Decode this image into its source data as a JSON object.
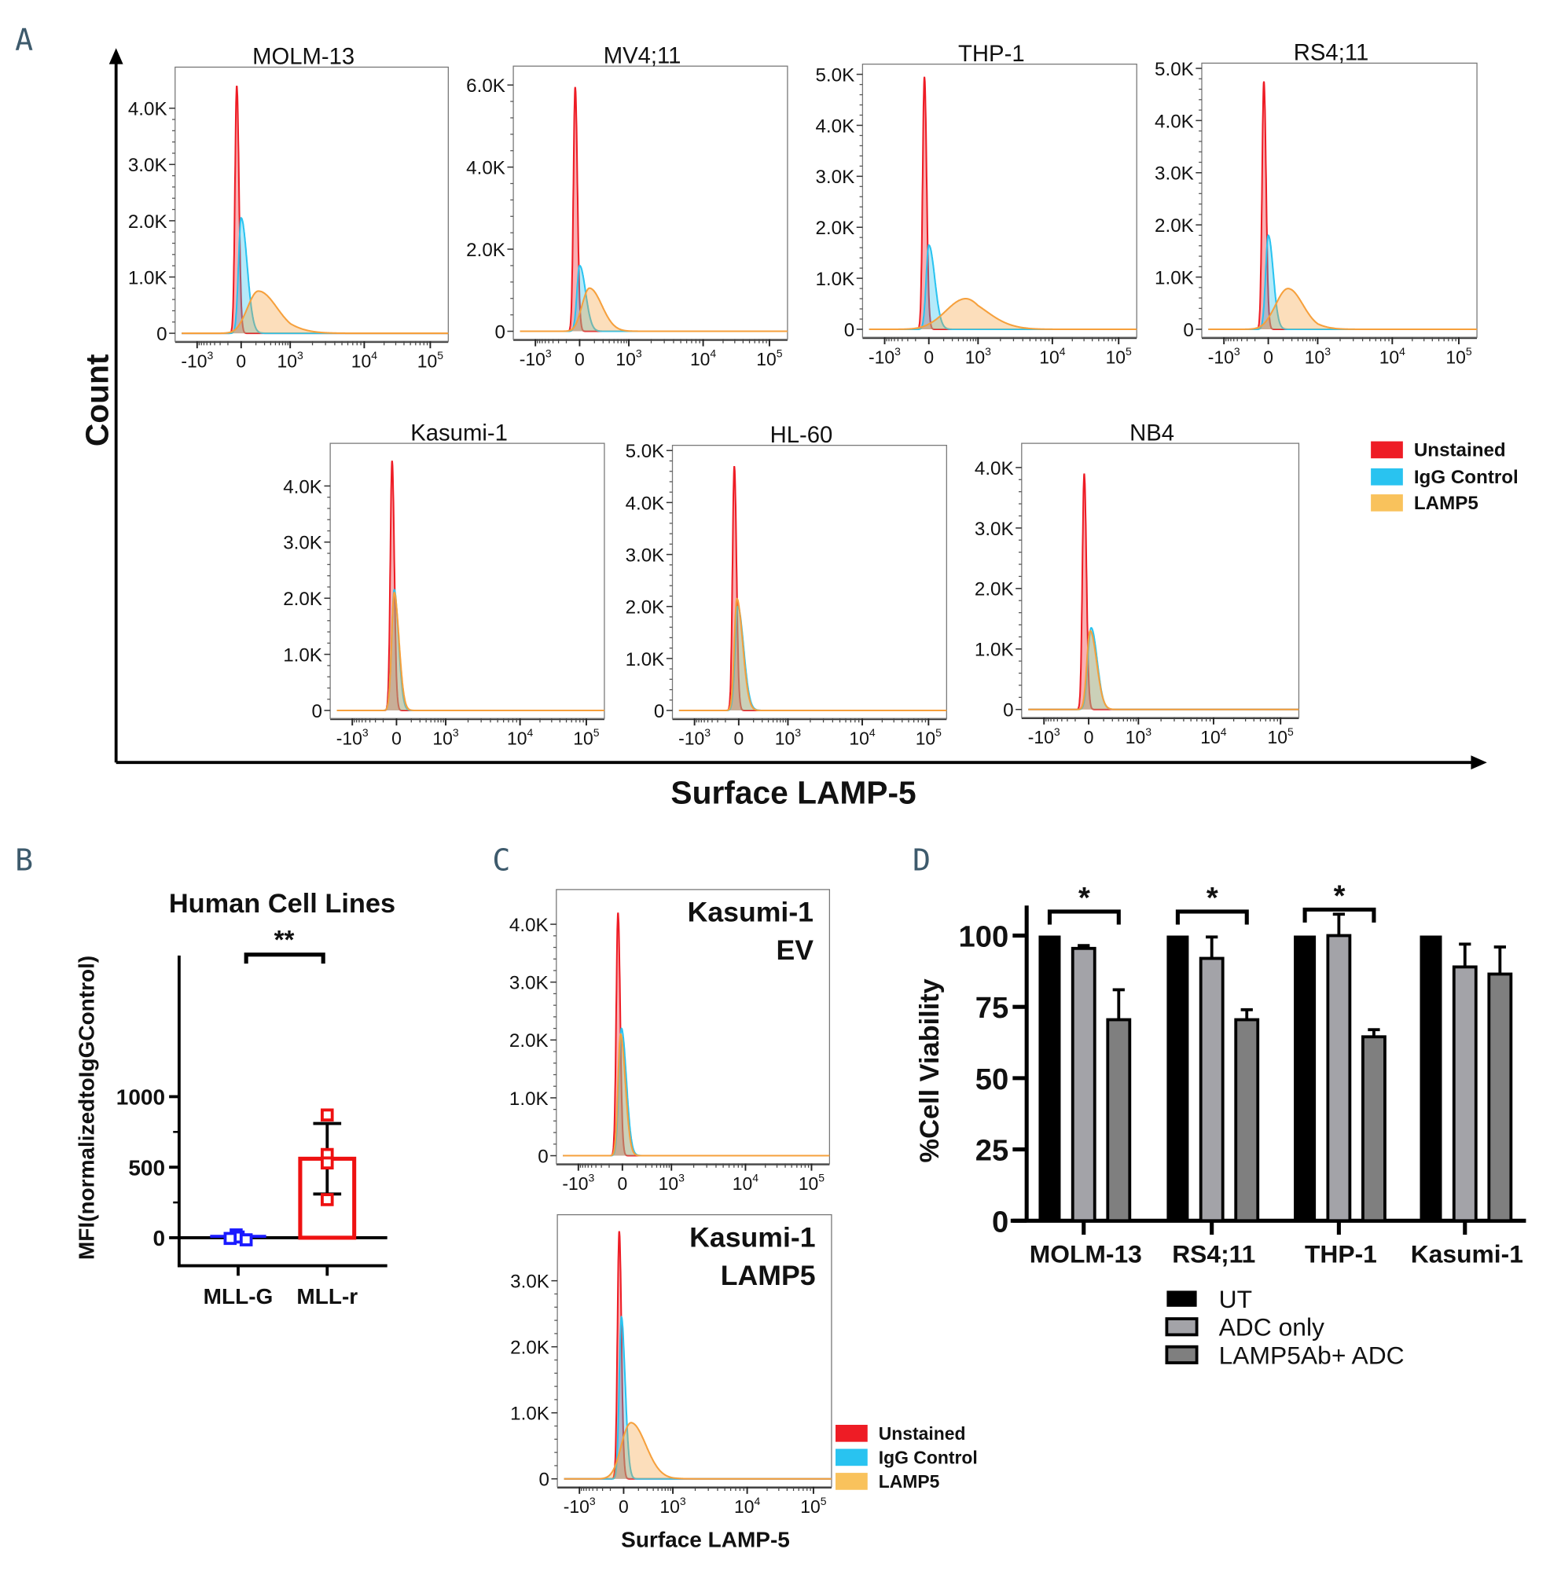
{
  "panel_letters": [
    "A",
    "B",
    "C",
    "D"
  ],
  "colors": {
    "unstained": "#ee1c25",
    "igg": "#29c3f0",
    "lamp5": "#f6a03c",
    "letter": "#3d5a6c",
    "mll_g": "#1a1aff",
    "mll_r": "#ee1111",
    "ut": "#000000",
    "adc": "#a3a3a8",
    "lamp5adc": "#7f7f7f"
  },
  "panel_a": {
    "ylabel": "Count",
    "xlabel": "Surface LAMP-5"
  },
  "legend_flow": [
    "Unstained",
    "IgG Control",
    "LAMP5"
  ],
  "x_ticks": [
    "-10",
    "0",
    "10",
    "10",
    "10"
  ],
  "x_tick_exp": [
    "3",
    "",
    "3",
    "4",
    "5"
  ],
  "chart_data": [
    {
      "type": "area",
      "title": "MOLM-13",
      "ymax": 4.73,
      "yticks": [
        "0",
        "1.0K",
        "2.0K",
        "3.0K",
        "4.0K"
      ],
      "series": [
        {
          "name": "Unstained",
          "center": -0.1,
          "height": 4.4,
          "sl": 0.04,
          "sr": 0.05
        },
        {
          "name": "IgG Control",
          "center": 0,
          "height": 2.05,
          "sl": 0.06,
          "sr": 0.12
        },
        {
          "name": "LAMP5",
          "center": 0.35,
          "height": 0.75,
          "sl": 0.22,
          "sr": 0.38
        }
      ]
    },
    {
      "type": "area",
      "title": "MV4;11",
      "ymax": 6.46,
      "yticks": [
        "0",
        "2.0K",
        "4.0K",
        "6.0K"
      ],
      "ystep": 2,
      "series": [
        {
          "name": "Unstained",
          "center": -0.1,
          "height": 5.95,
          "sl": 0.04,
          "sr": 0.05
        },
        {
          "name": "IgG Control",
          "center": 0,
          "height": 1.6,
          "sl": 0.06,
          "sr": 0.12
        },
        {
          "name": "LAMP5",
          "center": 0.2,
          "height": 1.05,
          "sl": 0.15,
          "sr": 0.25
        }
      ]
    },
    {
      "type": "area",
      "title": "THP-1",
      "ymax": 5.2,
      "yticks": [
        "0",
        "1.0K",
        "2.0K",
        "3.0K",
        "4.0K",
        "5.0K"
      ],
      "series": [
        {
          "name": "Unstained",
          "center": -0.1,
          "height": 4.95,
          "sl": 0.04,
          "sr": 0.05
        },
        {
          "name": "IgG Control",
          "center": 0,
          "height": 1.65,
          "sl": 0.06,
          "sr": 0.12
        },
        {
          "name": "LAMP5",
          "center": 0.75,
          "height": 0.6,
          "sl": 0.4,
          "sr": 0.35
        }
      ]
    },
    {
      "type": "area",
      "title": "RS4;11",
      "ymax": 5.1,
      "yticks": [
        "0",
        "1.0K",
        "2.0K",
        "3.0K",
        "4.0K",
        "5.0K"
      ],
      "series": [
        {
          "name": "Unstained",
          "center": -0.1,
          "height": 4.75,
          "sl": 0.04,
          "sr": 0.05
        },
        {
          "name": "IgG Control",
          "center": 0,
          "height": 1.8,
          "sl": 0.06,
          "sr": 0.1
        },
        {
          "name": "LAMP5",
          "center": 0.4,
          "height": 0.78,
          "sl": 0.25,
          "sr": 0.3
        }
      ]
    },
    {
      "type": "area",
      "title": "Kasumi-1",
      "ymax": 4.76,
      "yticks": [
        "0",
        "1.0K",
        "2.0K",
        "3.0K",
        "4.0K"
      ],
      "series": [
        {
          "name": "Unstained",
          "center": -0.1,
          "height": 4.45,
          "sl": 0.04,
          "sr": 0.05
        },
        {
          "name": "IgG Control",
          "center": -0.05,
          "height": 2.15,
          "sl": 0.06,
          "sr": 0.09
        },
        {
          "name": "LAMP5",
          "center": -0.05,
          "height": 2.1,
          "sl": 0.06,
          "sr": 0.1
        }
      ]
    },
    {
      "type": "area",
      "title": "HL-60",
      "ymax": 5.1,
      "yticks": [
        "0",
        "1.0K",
        "2.0K",
        "3.0K",
        "4.0K",
        "5.0K"
      ],
      "series": [
        {
          "name": "Unstained",
          "center": -0.1,
          "height": 4.7,
          "sl": 0.04,
          "sr": 0.05
        },
        {
          "name": "IgG Control",
          "center": -0.02,
          "height": 2.0,
          "sl": 0.06,
          "sr": 0.12
        },
        {
          "name": "LAMP5",
          "center": -0.04,
          "height": 2.15,
          "sl": 0.06,
          "sr": 0.12
        }
      ]
    },
    {
      "type": "area",
      "title": "NB4",
      "ymax": 4.4,
      "yticks": [
        "0",
        "1.0K",
        "2.0K",
        "3.0K",
        "4.0K"
      ],
      "series": [
        {
          "name": "Unstained",
          "center": -0.1,
          "height": 3.9,
          "sl": 0.04,
          "sr": 0.05
        },
        {
          "name": "IgG Control",
          "center": 0.05,
          "height": 1.35,
          "sl": 0.07,
          "sr": 0.12
        },
        {
          "name": "LAMP5",
          "center": 0.03,
          "height": 1.3,
          "sl": 0.07,
          "sr": 0.13
        }
      ]
    },
    {
      "type": "area",
      "title": "Kasumi-1 EV",
      "title_lines": [
        "Kasumi-1",
        "EV"
      ],
      "ymax": 4.6,
      "yticks": [
        "0",
        "1.0K",
        "2.0K",
        "3.0K",
        "4.0K"
      ],
      "series": [
        {
          "name": "Unstained",
          "center": -0.1,
          "height": 4.2,
          "sl": 0.04,
          "sr": 0.05
        },
        {
          "name": "IgG Control",
          "center": -0.02,
          "height": 2.2,
          "sl": 0.06,
          "sr": 0.1
        },
        {
          "name": "LAMP5",
          "center": -0.04,
          "height": 2.1,
          "sl": 0.06,
          "sr": 0.1
        }
      ]
    },
    {
      "type": "area",
      "title": "Kasumi-1 LAMP5",
      "title_lines": [
        "Kasumi-1",
        "LAMP5"
      ],
      "ymax": 4.0,
      "yticks": [
        "0",
        "1.0K",
        "2.0K",
        "3.0K"
      ],
      "xlabel": "Surface LAMP-5",
      "series": [
        {
          "name": "Unstained",
          "center": -0.1,
          "height": 3.75,
          "sl": 0.04,
          "sr": 0.05
        },
        {
          "name": "IgG Control",
          "center": -0.05,
          "height": 2.45,
          "sl": 0.05,
          "sr": 0.08
        },
        {
          "name": "LAMP5",
          "center": 0.15,
          "height": 0.85,
          "sl": 0.2,
          "sr": 0.3
        }
      ]
    },
    {
      "type": "scatter",
      "title": "Human Cell  Lines",
      "ylabel": "MFI(normalizedtoIgGControl)",
      "ylim": [
        -100,
        1000
      ],
      "yticks": [
        "0",
        "500",
        "1000"
      ],
      "categories": [
        "MLL-G",
        "MLL-r"
      ],
      "means": [
        10,
        560
      ],
      "sd": [
        10,
        250
      ],
      "points": [
        [
          20,
          5,
          -15,
          -5
        ],
        [
          870,
          590,
          530,
          270
        ]
      ],
      "significance": "**"
    },
    {
      "type": "bar",
      "ylabel": "%Cell Viability",
      "ylim": [
        0,
        110
      ],
      "yticks": [
        "0",
        "25",
        "50",
        "75",
        "100"
      ],
      "categories": [
        "MOLM-13",
        "RS4;11",
        "THP-1",
        "Kasumi-1"
      ],
      "series": [
        {
          "name": "UT",
          "values": [
            100,
            100,
            100,
            100
          ],
          "err": [
            0,
            0,
            0,
            0
          ]
        },
        {
          "name": "ADC only",
          "values": [
            95.5,
            92,
            100,
            89
          ],
          "err": [
            1,
            7.5,
            7.5,
            8
          ]
        },
        {
          "name": "LAMP5Ab+ ADC",
          "values": [
            70.5,
            70.5,
            64.5,
            86.5
          ],
          "err": [
            10.5,
            3.5,
            2.5,
            9.5
          ]
        }
      ],
      "significance": [
        "*",
        "*",
        "*",
        ""
      ]
    }
  ]
}
